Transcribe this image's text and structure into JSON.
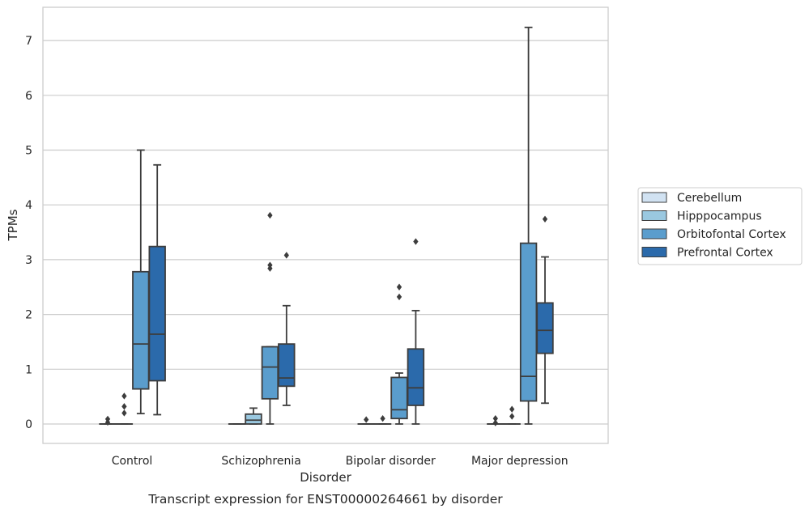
{
  "chart_data": {
    "type": "boxplot",
    "caption": "Transcript expression for ENST00000264661 by disorder",
    "xlabel": "Disorder",
    "ylabel": "TPMs",
    "ylim": [
      -0.35,
      7.6
    ],
    "yticks": [
      0,
      1,
      2,
      3,
      4,
      5,
      6,
      7
    ],
    "grid": "horizontal",
    "legend_position": "right",
    "categories": [
      "Control",
      "Schizophrenia",
      "Bipolar disorder",
      "Major depression"
    ],
    "series": [
      {
        "name": "Cerebellum",
        "color": "#d1e2f2",
        "boxes": [
          {
            "whislo": 0,
            "q1": 0,
            "med": 0,
            "q3": 0,
            "whishi": 0,
            "fliers": [
              0.03,
              0.09
            ]
          },
          {
            "whislo": 0,
            "q1": 0,
            "med": 0,
            "q3": 0,
            "whishi": 0,
            "fliers": []
          },
          {
            "whislo": 0,
            "q1": 0,
            "med": 0,
            "q3": 0,
            "whishi": 0,
            "fliers": [
              0.08
            ]
          },
          {
            "whislo": 0,
            "q1": 0,
            "med": 0,
            "q3": 0,
            "whishi": 0,
            "fliers": [
              0.02,
              0.1
            ]
          }
        ]
      },
      {
        "name": "Hipppocampus",
        "color": "#9ac8e0",
        "boxes": [
          {
            "whislo": 0,
            "q1": 0,
            "med": 0,
            "q3": 0,
            "whishi": 0,
            "fliers": [
              0.2,
              0.32,
              0.51
            ]
          },
          {
            "whislo": 0,
            "q1": 0,
            "med": 0.07,
            "q3": 0.18,
            "whishi": 0.29,
            "fliers": []
          },
          {
            "whislo": 0,
            "q1": 0,
            "med": 0,
            "q3": 0,
            "whishi": 0,
            "fliers": [
              0.1
            ]
          },
          {
            "whislo": 0,
            "q1": 0,
            "med": 0,
            "q3": 0,
            "whishi": 0,
            "fliers": [
              0.14,
              0.27
            ]
          }
        ]
      },
      {
        "name": "Orbitofontal Cortex",
        "color": "#5a9dcd",
        "boxes": [
          {
            "whislo": 0.19,
            "q1": 0.64,
            "med": 1.46,
            "q3": 2.78,
            "whishi": 5.0,
            "fliers": []
          },
          {
            "whislo": 0,
            "q1": 0.46,
            "med": 1.04,
            "q3": 1.41,
            "whishi": 1.41,
            "fliers": [
              2.84,
              2.9,
              3.81
            ]
          },
          {
            "whislo": 0,
            "q1": 0.1,
            "med": 0.26,
            "q3": 0.85,
            "whishi": 0.93,
            "fliers": [
              2.32,
              2.5
            ]
          },
          {
            "whislo": 0,
            "q1": 0.42,
            "med": 0.87,
            "q3": 3.3,
            "whishi": 7.24,
            "fliers": []
          }
        ]
      },
      {
        "name": "Prefrontal Cortex",
        "color": "#2b6aab",
        "boxes": [
          {
            "whislo": 0.17,
            "q1": 0.79,
            "med": 1.64,
            "q3": 3.24,
            "whishi": 4.73,
            "fliers": []
          },
          {
            "whislo": 0.34,
            "q1": 0.69,
            "med": 0.84,
            "q3": 1.46,
            "whishi": 2.16,
            "fliers": [
              3.08
            ]
          },
          {
            "whislo": 0,
            "q1": 0.34,
            "med": 0.66,
            "q3": 1.37,
            "whishi": 2.07,
            "fliers": [
              3.33
            ]
          },
          {
            "whislo": 0.38,
            "q1": 1.29,
            "med": 1.71,
            "q3": 2.21,
            "whishi": 3.05,
            "fliers": [
              3.74
            ]
          }
        ]
      }
    ]
  }
}
